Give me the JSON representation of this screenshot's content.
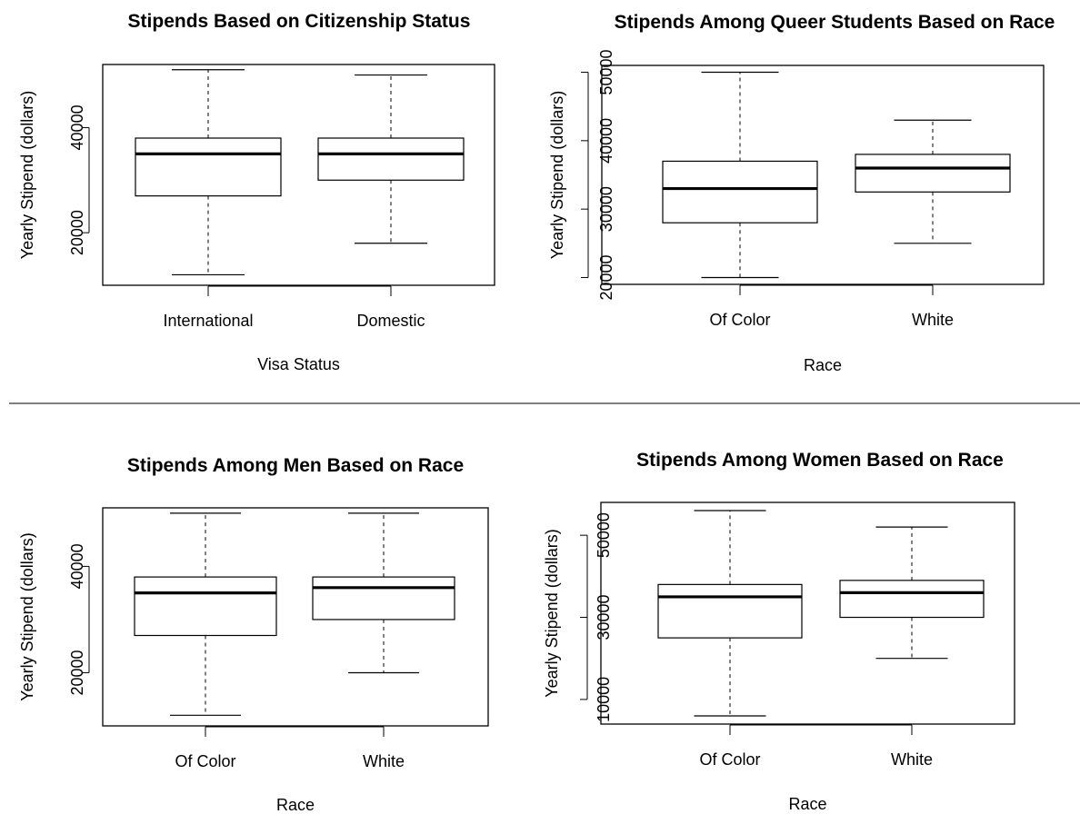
{
  "chart_data": [
    {
      "type": "box",
      "title": "Stipends Based on Citizenship Status",
      "xlabel": "Visa Status",
      "ylabel": "Yearly Stipend (dollars)",
      "ylim": [
        10000,
        52000
      ],
      "yticks": [
        20000,
        40000
      ],
      "categories": [
        "International",
        "Domestic"
      ],
      "boxes": [
        {
          "min": 12000,
          "q1": 27000,
          "median": 35000,
          "q3": 38000,
          "max": 51000
        },
        {
          "min": 18000,
          "q1": 30000,
          "median": 35000,
          "q3": 38000,
          "max": 50000
        }
      ]
    },
    {
      "type": "box",
      "title": "Stipends Among Queer Students Based on Race",
      "xlabel": "Race",
      "ylabel": "Yearly Stipend (dollars)",
      "ylim": [
        19000,
        51000
      ],
      "yticks": [
        20000,
        30000,
        40000,
        50000
      ],
      "categories": [
        "Of Color",
        "White"
      ],
      "boxes": [
        {
          "min": 20000,
          "q1": 28000,
          "median": 33000,
          "q3": 37000,
          "max": 50000
        },
        {
          "min": 25000,
          "q1": 32500,
          "median": 36000,
          "q3": 38000,
          "max": 43000
        }
      ]
    },
    {
      "type": "box",
      "title": "Stipends Among Men Based on Race",
      "xlabel": "Race",
      "ylabel": "Yearly Stipend (dollars)",
      "ylim": [
        10000,
        51000
      ],
      "yticks": [
        20000,
        40000
      ],
      "categories": [
        "Of Color",
        "White"
      ],
      "boxes": [
        {
          "min": 12000,
          "q1": 27000,
          "median": 35000,
          "q3": 38000,
          "max": 50000
        },
        {
          "min": 20000,
          "q1": 30000,
          "median": 36000,
          "q3": 38000,
          "max": 50000
        }
      ]
    },
    {
      "type": "box",
      "title": "Stipends Among Women Based on Race",
      "xlabel": "Race",
      "ylabel": "Yearly Stipend (dollars)",
      "ylim": [
        4000,
        58000
      ],
      "yticks": [
        10000,
        30000,
        50000
      ],
      "categories": [
        "Of Color",
        "White"
      ],
      "boxes": [
        {
          "min": 6000,
          "q1": 25000,
          "median": 35000,
          "q3": 38000,
          "max": 56000
        },
        {
          "min": 20000,
          "q1": 30000,
          "median": 36000,
          "q3": 39000,
          "max": 52000
        }
      ]
    }
  ]
}
